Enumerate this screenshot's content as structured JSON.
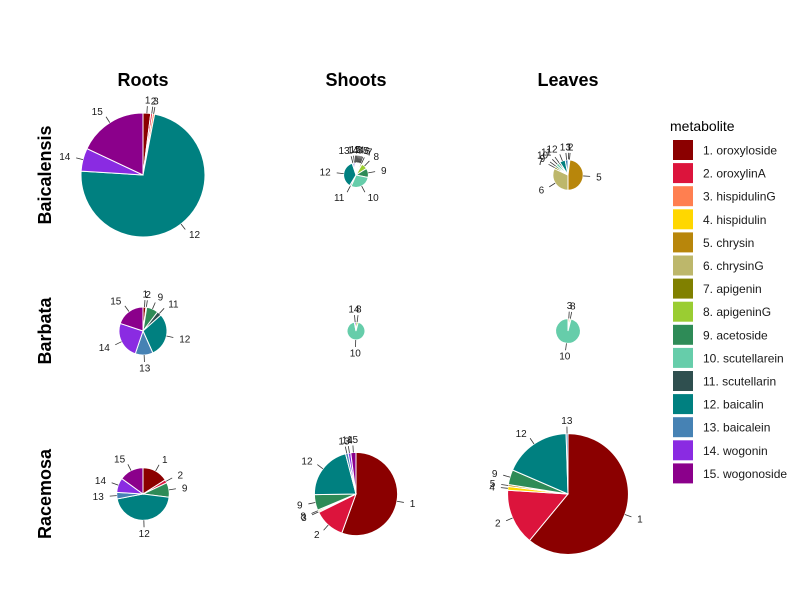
{
  "chart_data": {
    "type": "pie",
    "columns": [
      "Roots",
      "Shoots",
      "Leaves"
    ],
    "rows": [
      "Baicalensis",
      "Barbata",
      "Racemosa"
    ],
    "legend": {
      "title": "metabolite",
      "placement": "right",
      "entries": [
        {
          "id": 1,
          "label": "1. oroxyloside",
          "color": "#8B0000"
        },
        {
          "id": 2,
          "label": "2. oroxylinA",
          "color": "#DC143C"
        },
        {
          "id": 3,
          "label": "3. hispidulinG",
          "color": "#FF7F50"
        },
        {
          "id": 4,
          "label": "4. hispidulin",
          "color": "#FFD700"
        },
        {
          "id": 5,
          "label": "5. chrysin",
          "color": "#B8860B"
        },
        {
          "id": 6,
          "label": "6. chrysinG",
          "color": "#BDB76B"
        },
        {
          "id": 7,
          "label": "7. apigenin",
          "color": "#808000"
        },
        {
          "id": 8,
          "label": "8. apigeninG",
          "color": "#9ACD32"
        },
        {
          "id": 9,
          "label": "9. acetoside",
          "color": "#2E8B57"
        },
        {
          "id": 10,
          "label": "10. scutellarein",
          "color": "#66CDAA"
        },
        {
          "id": 11,
          "label": "11. scutellarin",
          "color": "#2F4F4F"
        },
        {
          "id": 12,
          "label": "12. baicalin",
          "color": "#008080"
        },
        {
          "id": 13,
          "label": "13. baicalein",
          "color": "#4682B4"
        },
        {
          "id": 14,
          "label": "14. wogonin",
          "color": "#8A2BE2"
        },
        {
          "id": 15,
          "label": "15. wogonoside",
          "color": "#8B008B"
        }
      ]
    },
    "pies": [
      {
        "row": "Baicalensis",
        "column": "Roots",
        "total": 1.0,
        "slices": [
          {
            "id": 1,
            "value": 0.02
          },
          {
            "id": 2,
            "value": 0.005
          },
          {
            "id": 3,
            "value": 0.005
          },
          {
            "id": 12,
            "value": 0.73
          },
          {
            "id": 14,
            "value": 0.06
          },
          {
            "id": 15,
            "value": 0.18
          }
        ]
      },
      {
        "row": "Baicalensis",
        "column": "Shoots",
        "total": 0.04,
        "slices": [
          {
            "id": 1,
            "value": 0.01
          },
          {
            "id": 2,
            "value": 0.01
          },
          {
            "id": 3,
            "value": 0.01
          },
          {
            "id": 4,
            "value": 0.01
          },
          {
            "id": 5,
            "value": 0.01
          },
          {
            "id": 6,
            "value": 0.01
          },
          {
            "id": 7,
            "value": 0.02
          },
          {
            "id": 8,
            "value": 0.08
          },
          {
            "id": 9,
            "value": 0.12
          },
          {
            "id": 10,
            "value": 0.28
          },
          {
            "id": 11,
            "value": 0.02
          },
          {
            "id": 12,
            "value": 0.36
          },
          {
            "id": 13,
            "value": 0.02
          },
          {
            "id": 14,
            "value": 0.02
          },
          {
            "id": 15,
            "value": 0.01
          }
        ]
      },
      {
        "row": "Baicalensis",
        "column": "Leaves",
        "total": 0.06,
        "slices": [
          {
            "id": 1,
            "value": 0.01
          },
          {
            "id": 2,
            "value": 0.01
          },
          {
            "id": 5,
            "value": 0.48
          },
          {
            "id": 6,
            "value": 0.32
          },
          {
            "id": 7,
            "value": 0.02
          },
          {
            "id": 9,
            "value": 0.02
          },
          {
            "id": 10,
            "value": 0.03
          },
          {
            "id": 11,
            "value": 0.02
          },
          {
            "id": 12,
            "value": 0.06
          },
          {
            "id": 13,
            "value": 0.03
          }
        ]
      },
      {
        "row": "Barbata",
        "column": "Roots",
        "total": 0.15,
        "slices": [
          {
            "id": 1,
            "value": 0.02
          },
          {
            "id": 2,
            "value": 0.005
          },
          {
            "id": 9,
            "value": 0.08
          },
          {
            "id": 11,
            "value": 0.03
          },
          {
            "id": 12,
            "value": 0.3
          },
          {
            "id": 13,
            "value": 0.12
          },
          {
            "id": 14,
            "value": 0.25
          },
          {
            "id": 15,
            "value": 0.2
          }
        ]
      },
      {
        "row": "Barbata",
        "column": "Shoots",
        "total": 0.02,
        "slices": [
          {
            "id": 8,
            "value": 0.04
          },
          {
            "id": 10,
            "value": 0.93
          },
          {
            "id": 14,
            "value": 0.03
          }
        ]
      },
      {
        "row": "Barbata",
        "column": "Leaves",
        "total": 0.04,
        "slices": [
          {
            "id": 3,
            "value": 0.02
          },
          {
            "id": 8,
            "value": 0.02
          },
          {
            "id": 10,
            "value": 0.96
          }
        ]
      },
      {
        "row": "Racemosa",
        "column": "Roots",
        "total": 0.18,
        "slices": [
          {
            "id": 1,
            "value": 0.16
          },
          {
            "id": 2,
            "value": 0.02
          },
          {
            "id": 9,
            "value": 0.09
          },
          {
            "id": 12,
            "value": 0.45
          },
          {
            "id": 13,
            "value": 0.04
          },
          {
            "id": 14,
            "value": 0.09
          },
          {
            "id": 15,
            "value": 0.15
          }
        ]
      },
      {
        "row": "Racemosa",
        "column": "Shoots",
        "total": 0.45,
        "slices": [
          {
            "id": 1,
            "value": 0.55
          },
          {
            "id": 2,
            "value": 0.12
          },
          {
            "id": 3,
            "value": 0.005
          },
          {
            "id": 8,
            "value": 0.005
          },
          {
            "id": 9,
            "value": 0.06
          },
          {
            "id": 12,
            "value": 0.21
          },
          {
            "id": 13,
            "value": 0.01
          },
          {
            "id": 14,
            "value": 0.01
          },
          {
            "id": 15,
            "value": 0.02
          }
        ]
      },
      {
        "row": "Racemosa",
        "column": "Leaves",
        "total": 0.95,
        "slices": [
          {
            "id": 1,
            "value": 0.61
          },
          {
            "id": 2,
            "value": 0.15
          },
          {
            "id": 4,
            "value": 0.01
          },
          {
            "id": 5,
            "value": 0.005
          },
          {
            "id": 9,
            "value": 0.04
          },
          {
            "id": 12,
            "value": 0.18
          },
          {
            "id": 13,
            "value": 0.005
          }
        ]
      }
    ]
  }
}
